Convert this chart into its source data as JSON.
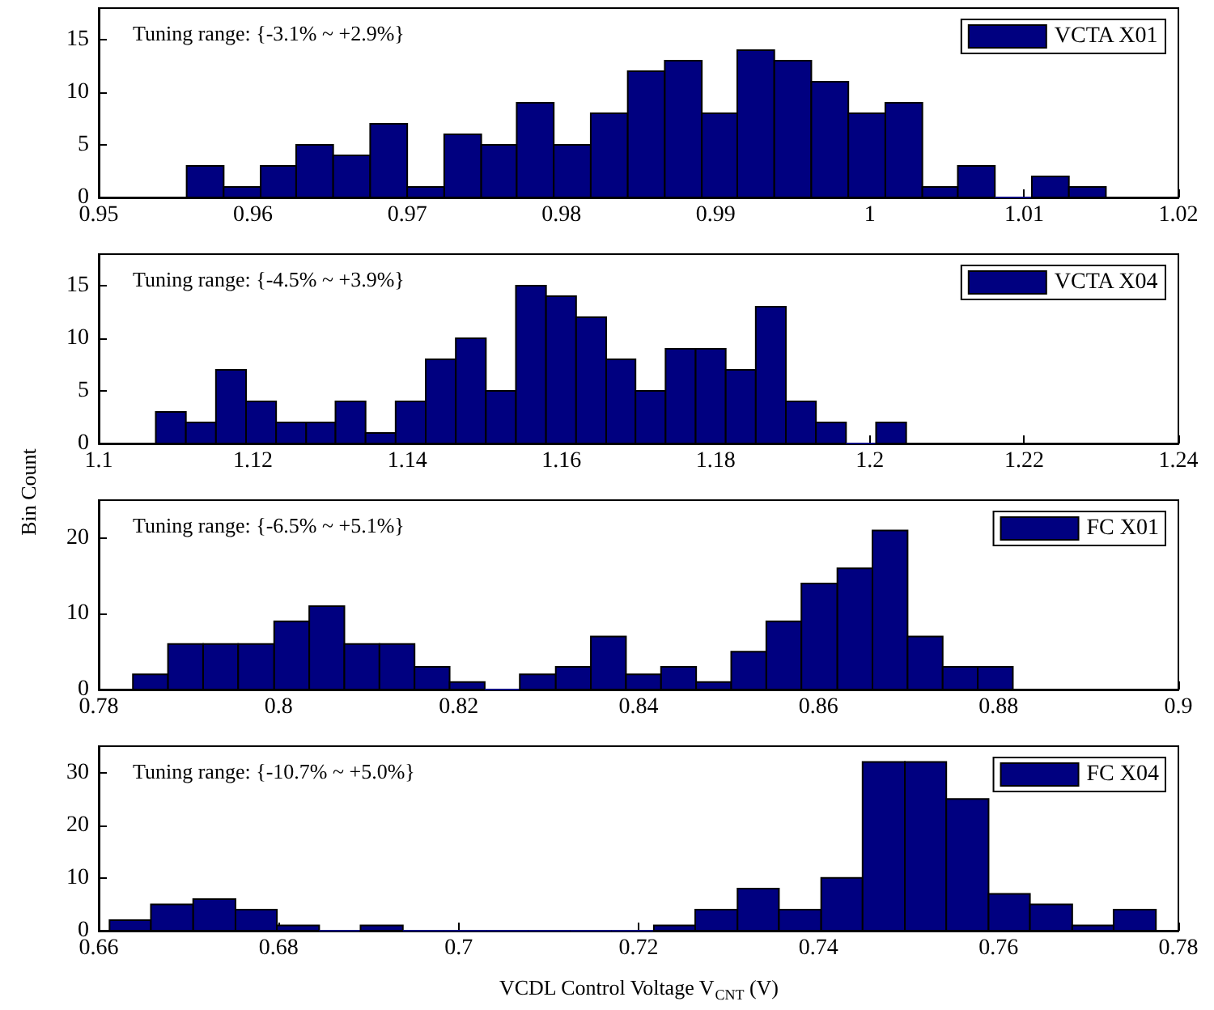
{
  "chart_data": [
    {
      "type": "histogram",
      "bins": [
        0.9557,
        0.9581,
        0.9605,
        0.9628,
        0.9652,
        0.9676,
        0.97,
        0.9724,
        0.9748,
        0.9771,
        0.9795,
        0.9819,
        0.9843,
        0.9867,
        0.9891,
        0.9914,
        0.9938,
        0.9962,
        0.9986,
        1.001,
        1.0034,
        1.0057,
        1.0081,
        1.0105,
        1.0129,
        1.0153
      ],
      "series": [
        {
          "name": "VCTA X01",
          "color": "#000080",
          "values": [
            3,
            1,
            3,
            5,
            4,
            7,
            1,
            6,
            5,
            9,
            5,
            8,
            12,
            13,
            8,
            14,
            13,
            11,
            8,
            9,
            1,
            3,
            0,
            2,
            1
          ]
        }
      ],
      "xlim": [
        0.95,
        1.02
      ],
      "xticks": [
        0.95,
        0.96,
        0.97,
        0.98,
        0.99,
        1,
        1.01,
        1.02
      ],
      "ylim": [
        0,
        18
      ],
      "yticks": [
        0,
        5,
        10,
        15
      ],
      "annotations": [
        "Tuning range: {-3.1% ~ +2.9%}"
      ],
      "legend": "top right",
      "grid": false
    },
    {
      "type": "histogram",
      "bins": [
        1.1074,
        1.1113,
        1.1152,
        1.1191,
        1.123,
        1.1269,
        1.1307,
        1.1346,
        1.1385,
        1.1424,
        1.1463,
        1.1502,
        1.1541,
        1.158,
        1.1619,
        1.1658,
        1.1696,
        1.1735,
        1.1774,
        1.1813,
        1.1852,
        1.1891,
        1.193,
        1.1969,
        1.2008,
        1.2047
      ],
      "series": [
        {
          "name": "VCTA X04",
          "color": "#000080",
          "values": [
            3,
            2,
            7,
            4,
            2,
            2,
            4,
            1,
            4,
            8,
            10,
            5,
            15,
            14,
            12,
            8,
            5,
            9,
            9,
            7,
            13,
            4,
            2,
            0,
            2
          ]
        }
      ],
      "xlim": [
        1.1,
        1.24
      ],
      "xticks": [
        1.1,
        1.12,
        1.14,
        1.16,
        1.18,
        1.2,
        1.22,
        1.24
      ],
      "ylim": [
        0,
        18
      ],
      "yticks": [
        0,
        5,
        10,
        15
      ],
      "ylabel": "Bin Count",
      "annotations": [
        "Tuning range: {-4.5% ~ +3.9%}"
      ],
      "legend": "top right",
      "grid": false
    },
    {
      "type": "histogram",
      "bins": [
        0.7838,
        0.7877,
        0.7916,
        0.7955,
        0.7995,
        0.8034,
        0.8073,
        0.8112,
        0.8151,
        0.819,
        0.8229,
        0.8268,
        0.8308,
        0.8347,
        0.8386,
        0.8425,
        0.8464,
        0.8503,
        0.8542,
        0.8581,
        0.8621,
        0.866,
        0.8699,
        0.8738,
        0.8777,
        0.8816
      ],
      "series": [
        {
          "name": "FC X01",
          "color": "#000080",
          "values": [
            2,
            6,
            6,
            6,
            9,
            11,
            6,
            6,
            3,
            1,
            0,
            2,
            3,
            7,
            2,
            3,
            1,
            5,
            9,
            14,
            16,
            21,
            7,
            3,
            3
          ]
        }
      ],
      "xlim": [
        0.78,
        0.9
      ],
      "xticks": [
        0.78,
        0.8,
        0.82,
        0.84,
        0.86,
        0.88,
        0.9
      ],
      "ylim": [
        0,
        25
      ],
      "yticks": [
        0,
        10,
        20
      ],
      "annotations": [
        "Tuning range: {-6.5% ~ +5.1%}"
      ],
      "legend": "top right",
      "grid": false
    },
    {
      "type": "histogram",
      "bins": [
        0.6612,
        0.6658,
        0.6705,
        0.6752,
        0.6798,
        0.6845,
        0.6891,
        0.6938,
        0.6984,
        0.7031,
        0.7077,
        0.7124,
        0.717,
        0.7217,
        0.7263,
        0.731,
        0.7356,
        0.7403,
        0.7449,
        0.7496,
        0.7542,
        0.7589,
        0.7635,
        0.7682,
        0.7728,
        0.7775
      ],
      "series": [
        {
          "name": "FC X04",
          "color": "#000080",
          "values": [
            2,
            5,
            6,
            4,
            1,
            0,
            1,
            0,
            0,
            0,
            0,
            0,
            0,
            1,
            4,
            8,
            4,
            10,
            32,
            32,
            25,
            7,
            5,
            1,
            4
          ]
        }
      ],
      "xlim": [
        0.66,
        0.78
      ],
      "xticks": [
        0.66,
        0.68,
        0.7,
        0.72,
        0.74,
        0.76,
        0.78
      ],
      "ylim": [
        0,
        35
      ],
      "yticks": [
        0,
        10,
        20,
        30
      ],
      "xlabel": "VCDL Control Voltage V$_{CNT}$ (V)",
      "annotations": [
        "Tuning range: {-10.7% ~ +5.0%}"
      ],
      "legend": "top right",
      "grid": false
    }
  ]
}
